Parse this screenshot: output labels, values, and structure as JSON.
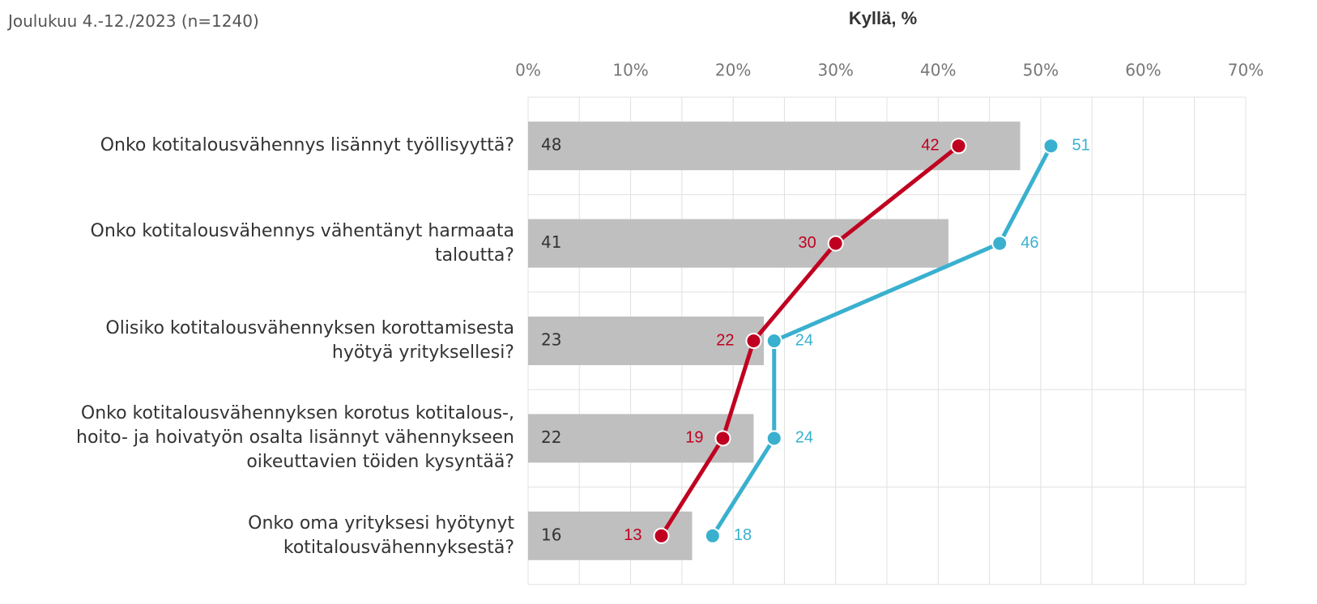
{
  "chart_data": {
    "type": "bar-line",
    "title": "Kyllä, %",
    "subtitle": "Joulukuu 4.-12./2023 (n=1240)",
    "categories": [
      "Onko kotitalousvähennys lisännyt työllisyyttä?",
      "Onko kotitalousvähennys vähentänyt harmaata\ntaloutta?",
      "Olisiko kotitalousvähennyksen korottamisesta\nhyötyä yrityksellesi?",
      "Onko kotitalousvähennyksen korotus kotitalous-,\nhoito- ja hoivatyön osalta lisännyt vähennykseen\noikeuttavien töiden kysyntää?",
      "Onko oma yrityksesi hyötynyt\nkotitalousvähennyksestä?"
    ],
    "values": [
      48,
      41,
      23,
      22,
      16
    ],
    "color": "#bfbfbf",
    "series": [
      {
        "color": "#c00020",
        "values": [
          42,
          30,
          22,
          19,
          13
        ]
      },
      {
        "color": "#3ab0cf",
        "values": [
          51,
          46,
          24,
          24,
          18
        ]
      }
    ],
    "xlim": [
      0,
      70
    ],
    "xticks": [
      {
        "value": 0,
        "label": "0%"
      },
      {
        "value": 10,
        "label": "10%"
      },
      {
        "value": 20,
        "label": "20%"
      },
      {
        "value": 30,
        "label": "30%"
      },
      {
        "value": 40,
        "label": "40%"
      },
      {
        "value": 50,
        "label": "50%"
      },
      {
        "value": 60,
        "label": "60%"
      },
      {
        "value": 70,
        "label": "70%"
      }
    ],
    "xminorticks": [
      5,
      15,
      25,
      35,
      45,
      55,
      65
    ],
    "grid": true
  }
}
